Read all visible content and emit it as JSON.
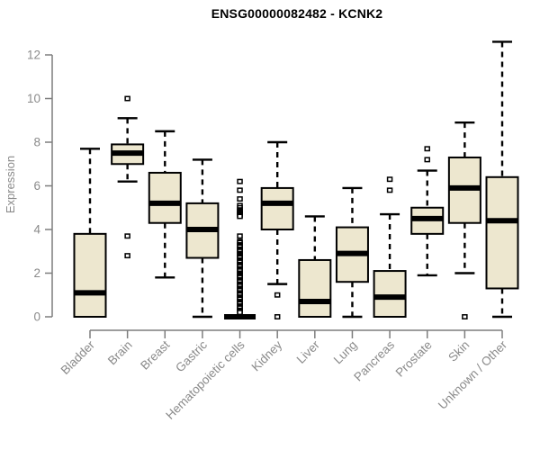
{
  "chart_data": {
    "type": "boxplot",
    "title": "ENSG00000082482 - KCNK2",
    "xlabel": "",
    "ylabel": "Expression",
    "ylim": [
      0,
      12
    ],
    "yticks": [
      0,
      2,
      4,
      6,
      8,
      10,
      12
    ],
    "grid": false,
    "legend": "none",
    "categories": [
      "Bladder",
      "Brain",
      "Breast",
      "Gastric",
      "Hematopoietic cells",
      "Kidney",
      "Liver",
      "Lung",
      "Pancreas",
      "Prostate",
      "Skin",
      "Unknown / Other"
    ],
    "boxes": [
      {
        "category": "Bladder",
        "whisker_low": 0,
        "q1": 0,
        "median": 1.1,
        "q3": 3.8,
        "whisker_high": 7.7,
        "outliers": []
      },
      {
        "category": "Brain",
        "whisker_low": 6.2,
        "q1": 7.0,
        "median": 7.5,
        "q3": 7.9,
        "whisker_high": 9.1,
        "outliers": [
          10.0,
          3.7,
          2.8
        ]
      },
      {
        "category": "Breast",
        "whisker_low": 1.8,
        "q1": 4.3,
        "median": 5.2,
        "q3": 6.6,
        "whisker_high": 8.5,
        "outliers": []
      },
      {
        "category": "Gastric",
        "whisker_low": 0,
        "q1": 2.7,
        "median": 4.0,
        "q3": 5.2,
        "whisker_high": 7.2,
        "outliers": []
      },
      {
        "category": "Hematopoietic cells",
        "whisker_low": 0,
        "q1": 0,
        "median": 0,
        "q3": 0,
        "whisker_high": 0,
        "outliers": [
          6.2,
          5.8,
          5.4,
          5.1,
          5.0,
          4.9,
          4.85,
          4.8,
          4.75,
          4.7,
          4.65,
          4.6,
          3.7,
          3.45,
          3.4,
          3.3,
          3.25,
          3.2,
          3.1,
          3.05,
          3.0,
          2.9,
          2.85,
          2.8,
          2.75,
          2.7,
          2.6,
          2.55,
          2.5,
          2.4,
          2.35,
          2.3,
          2.2,
          2.15,
          2.1,
          2.0,
          1.95,
          1.9,
          1.85,
          1.8,
          1.7,
          1.65,
          1.6,
          1.5,
          1.45,
          1.4,
          1.3,
          1.25,
          1.2,
          1.1,
          1.05,
          1.0,
          0.9,
          0.85,
          0.8,
          0.7,
          0.65,
          0.6,
          0.5,
          0.45,
          0.4,
          0.3,
          0.25,
          0.2
        ]
      },
      {
        "category": "Kidney",
        "whisker_low": 1.5,
        "q1": 4.0,
        "median": 5.2,
        "q3": 5.9,
        "whisker_high": 8.0,
        "outliers": [
          1.0,
          0.0
        ]
      },
      {
        "category": "Liver",
        "whisker_low": 0,
        "q1": 0,
        "median": 0.7,
        "q3": 2.6,
        "whisker_high": 4.6,
        "outliers": []
      },
      {
        "category": "Lung",
        "whisker_low": 0,
        "q1": 1.6,
        "median": 2.9,
        "q3": 4.1,
        "whisker_high": 5.9,
        "outliers": []
      },
      {
        "category": "Pancreas",
        "whisker_low": 0,
        "q1": 0,
        "median": 0.9,
        "q3": 2.1,
        "whisker_high": 4.7,
        "outliers": [
          6.3,
          5.8
        ]
      },
      {
        "category": "Prostate",
        "whisker_low": 1.9,
        "q1": 3.8,
        "median": 4.5,
        "q3": 5.0,
        "whisker_high": 6.7,
        "outliers": [
          7.7,
          7.2
        ]
      },
      {
        "category": "Skin",
        "whisker_low": 2.0,
        "q1": 4.3,
        "median": 5.9,
        "q3": 7.3,
        "whisker_high": 8.9,
        "outliers": [
          0.0
        ]
      },
      {
        "category": "Unknown / Other",
        "whisker_low": 0,
        "q1": 1.3,
        "median": 4.4,
        "q3": 6.4,
        "whisker_high": 12.6,
        "outliers": []
      }
    ],
    "colors": {
      "box_fill": "#EDE7CF",
      "box_border": "#000000",
      "median": "#000000",
      "whisker": "#000000",
      "outlier_stroke": "#000000",
      "outlier_fill": "#ffffff",
      "axis": "#7d7d7d",
      "tick_label": "#8a8a8a",
      "title": "#000000",
      "background": "#ffffff"
    }
  }
}
